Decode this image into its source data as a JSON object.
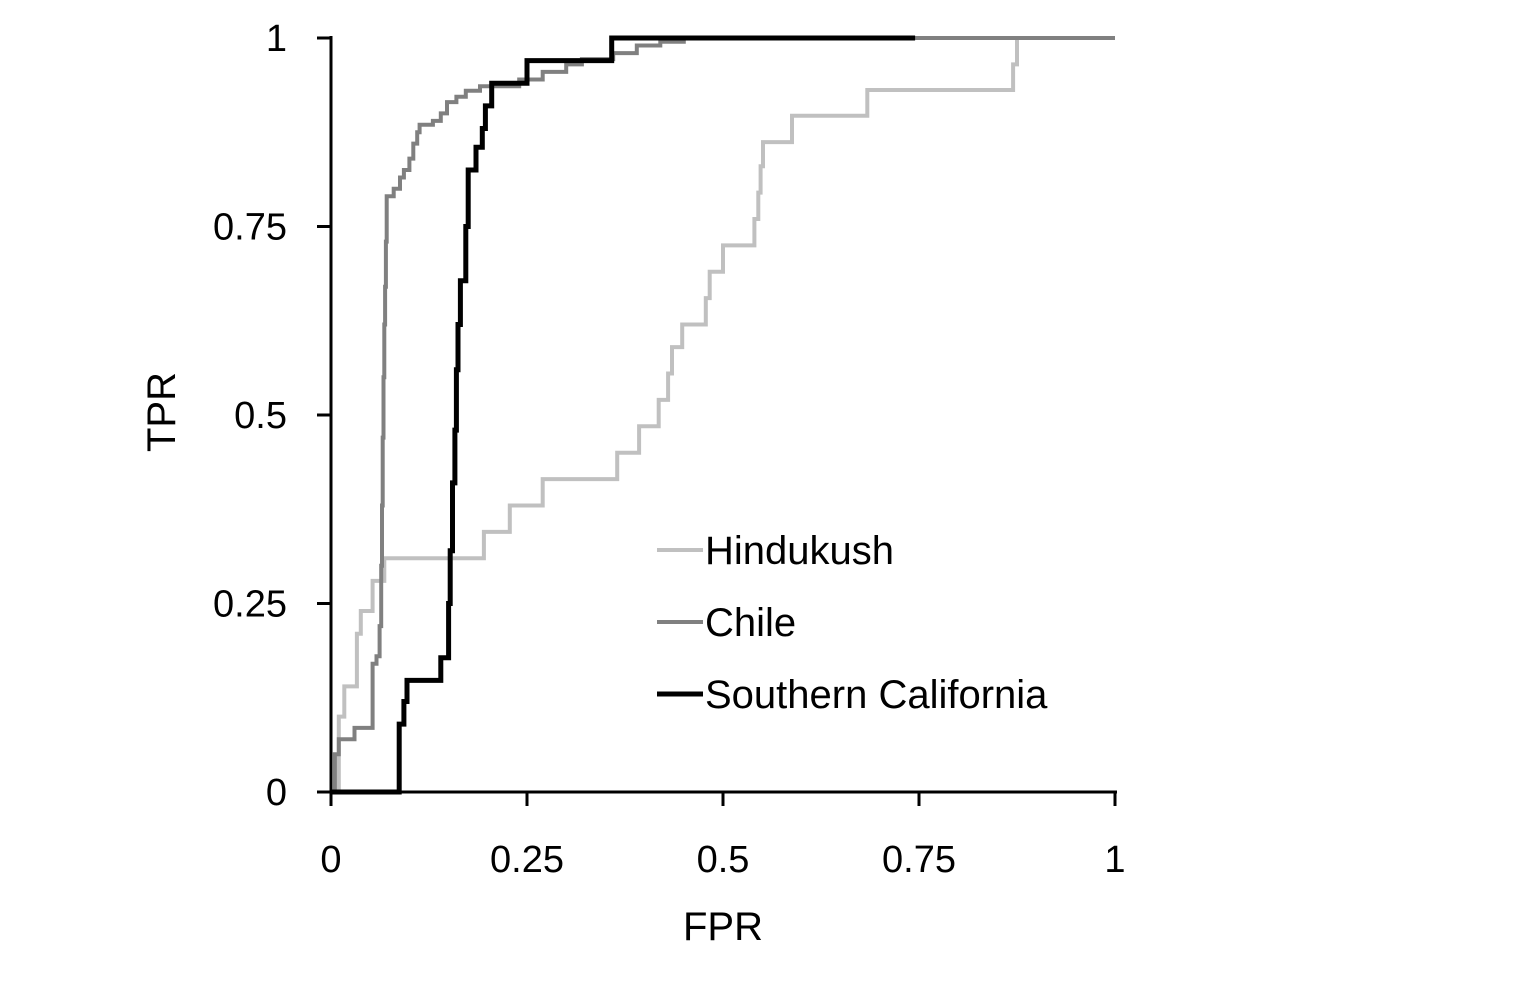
{
  "chart_data": {
    "type": "line",
    "title": "",
    "xlabel": "FPR",
    "ylabel": "TPR",
    "xlim": [
      0,
      1
    ],
    "ylim": [
      0,
      1
    ],
    "x_ticks": [
      0,
      0.25,
      0.5,
      0.75,
      1
    ],
    "y_ticks": [
      0,
      0.25,
      0.5,
      0.75,
      1
    ],
    "x_tick_labels": [
      "0",
      "0.25",
      "0.5",
      "0.75",
      "1"
    ],
    "y_tick_labels": [
      "0",
      "0.25",
      "0.5",
      "0.75",
      "1"
    ],
    "grid": false,
    "legend_position": "center-right",
    "series": [
      {
        "name": "Hindukush",
        "color": "#c0c0c0",
        "points": [
          [
            0,
            0
          ],
          [
            0.01,
            0
          ],
          [
            0.01,
            0.1
          ],
          [
            0.017,
            0.1
          ],
          [
            0.017,
            0.14
          ],
          [
            0.033,
            0.14
          ],
          [
            0.033,
            0.21
          ],
          [
            0.038,
            0.21
          ],
          [
            0.038,
            0.24
          ],
          [
            0.053,
            0.24
          ],
          [
            0.053,
            0.28
          ],
          [
            0.068,
            0.28
          ],
          [
            0.068,
            0.31
          ],
          [
            0.195,
            0.31
          ],
          [
            0.195,
            0.345
          ],
          [
            0.228,
            0.345
          ],
          [
            0.228,
            0.38
          ],
          [
            0.27,
            0.38
          ],
          [
            0.27,
            0.415
          ],
          [
            0.365,
            0.415
          ],
          [
            0.365,
            0.45
          ],
          [
            0.393,
            0.45
          ],
          [
            0.393,
            0.485
          ],
          [
            0.418,
            0.485
          ],
          [
            0.418,
            0.52
          ],
          [
            0.43,
            0.52
          ],
          [
            0.43,
            0.555
          ],
          [
            0.435,
            0.555
          ],
          [
            0.435,
            0.59
          ],
          [
            0.448,
            0.59
          ],
          [
            0.448,
            0.62
          ],
          [
            0.478,
            0.62
          ],
          [
            0.478,
            0.655
          ],
          [
            0.483,
            0.655
          ],
          [
            0.483,
            0.69
          ],
          [
            0.5,
            0.69
          ],
          [
            0.5,
            0.725
          ],
          [
            0.54,
            0.725
          ],
          [
            0.54,
            0.76
          ],
          [
            0.545,
            0.76
          ],
          [
            0.545,
            0.795
          ],
          [
            0.548,
            0.795
          ],
          [
            0.548,
            0.83
          ],
          [
            0.551,
            0.83
          ],
          [
            0.551,
            0.862
          ],
          [
            0.588,
            0.862
          ],
          [
            0.588,
            0.897
          ],
          [
            0.684,
            0.897
          ],
          [
            0.684,
            0.931
          ],
          [
            0.87,
            0.931
          ],
          [
            0.87,
            0.965
          ],
          [
            0.875,
            0.965
          ],
          [
            0.875,
            1.0
          ],
          [
            1.0,
            1.0
          ]
        ]
      },
      {
        "name": "Chile",
        "color": "#808080",
        "points": [
          [
            0,
            0
          ],
          [
            0.005,
            0
          ],
          [
            0.005,
            0.05
          ],
          [
            0.01,
            0.05
          ],
          [
            0.01,
            0.07
          ],
          [
            0.03,
            0.07
          ],
          [
            0.03,
            0.085
          ],
          [
            0.053,
            0.085
          ],
          [
            0.053,
            0.17
          ],
          [
            0.058,
            0.17
          ],
          [
            0.058,
            0.18
          ],
          [
            0.062,
            0.18
          ],
          [
            0.062,
            0.22
          ],
          [
            0.064,
            0.22
          ],
          [
            0.064,
            0.3
          ],
          [
            0.065,
            0.3
          ],
          [
            0.065,
            0.38
          ],
          [
            0.066,
            0.38
          ],
          [
            0.066,
            0.47
          ],
          [
            0.067,
            0.47
          ],
          [
            0.067,
            0.55
          ],
          [
            0.068,
            0.55
          ],
          [
            0.068,
            0.62
          ],
          [
            0.069,
            0.62
          ],
          [
            0.069,
            0.67
          ],
          [
            0.07,
            0.67
          ],
          [
            0.07,
            0.73
          ],
          [
            0.071,
            0.73
          ],
          [
            0.071,
            0.79
          ],
          [
            0.08,
            0.79
          ],
          [
            0.08,
            0.8
          ],
          [
            0.088,
            0.8
          ],
          [
            0.088,
            0.815
          ],
          [
            0.093,
            0.815
          ],
          [
            0.093,
            0.825
          ],
          [
            0.1,
            0.825
          ],
          [
            0.1,
            0.84
          ],
          [
            0.105,
            0.84
          ],
          [
            0.105,
            0.86
          ],
          [
            0.11,
            0.86
          ],
          [
            0.11,
            0.875
          ],
          [
            0.113,
            0.875
          ],
          [
            0.113,
            0.885
          ],
          [
            0.13,
            0.885
          ],
          [
            0.13,
            0.89
          ],
          [
            0.14,
            0.89
          ],
          [
            0.14,
            0.9
          ],
          [
            0.148,
            0.9
          ],
          [
            0.148,
            0.915
          ],
          [
            0.16,
            0.915
          ],
          [
            0.16,
            0.922
          ],
          [
            0.172,
            0.922
          ],
          [
            0.172,
            0.93
          ],
          [
            0.19,
            0.93
          ],
          [
            0.19,
            0.936
          ],
          [
            0.24,
            0.936
          ],
          [
            0.24,
            0.945
          ],
          [
            0.27,
            0.945
          ],
          [
            0.27,
            0.955
          ],
          [
            0.3,
            0.955
          ],
          [
            0.3,
            0.965
          ],
          [
            0.32,
            0.965
          ],
          [
            0.32,
            0.972
          ],
          [
            0.36,
            0.972
          ],
          [
            0.36,
            0.98
          ],
          [
            0.39,
            0.98
          ],
          [
            0.39,
            0.99
          ],
          [
            0.42,
            0.99
          ],
          [
            0.42,
            0.995
          ],
          [
            0.45,
            0.995
          ],
          [
            0.45,
            1.0
          ],
          [
            1.0,
            1.0
          ]
        ]
      },
      {
        "name": "Southern California",
        "color": "#000000",
        "points": [
          [
            0,
            0
          ],
          [
            0.087,
            0
          ],
          [
            0.087,
            0.09
          ],
          [
            0.093,
            0.09
          ],
          [
            0.093,
            0.12
          ],
          [
            0.097,
            0.12
          ],
          [
            0.097,
            0.148
          ],
          [
            0.14,
            0.148
          ],
          [
            0.14,
            0.178
          ],
          [
            0.15,
            0.178
          ],
          [
            0.15,
            0.25
          ],
          [
            0.152,
            0.25
          ],
          [
            0.152,
            0.32
          ],
          [
            0.155,
            0.32
          ],
          [
            0.155,
            0.41
          ],
          [
            0.158,
            0.41
          ],
          [
            0.158,
            0.48
          ],
          [
            0.16,
            0.48
          ],
          [
            0.16,
            0.56
          ],
          [
            0.162,
            0.56
          ],
          [
            0.162,
            0.62
          ],
          [
            0.165,
            0.62
          ],
          [
            0.165,
            0.678
          ],
          [
            0.172,
            0.678
          ],
          [
            0.172,
            0.75
          ],
          [
            0.175,
            0.75
          ],
          [
            0.175,
            0.825
          ],
          [
            0.185,
            0.825
          ],
          [
            0.185,
            0.855
          ],
          [
            0.193,
            0.855
          ],
          [
            0.193,
            0.88
          ],
          [
            0.197,
            0.88
          ],
          [
            0.197,
            0.91
          ],
          [
            0.205,
            0.91
          ],
          [
            0.205,
            0.94
          ],
          [
            0.25,
            0.94
          ],
          [
            0.25,
            0.97
          ],
          [
            0.358,
            0.97
          ],
          [
            0.358,
            1.0
          ],
          [
            0.745,
            1.0
          ]
        ]
      }
    ]
  }
}
